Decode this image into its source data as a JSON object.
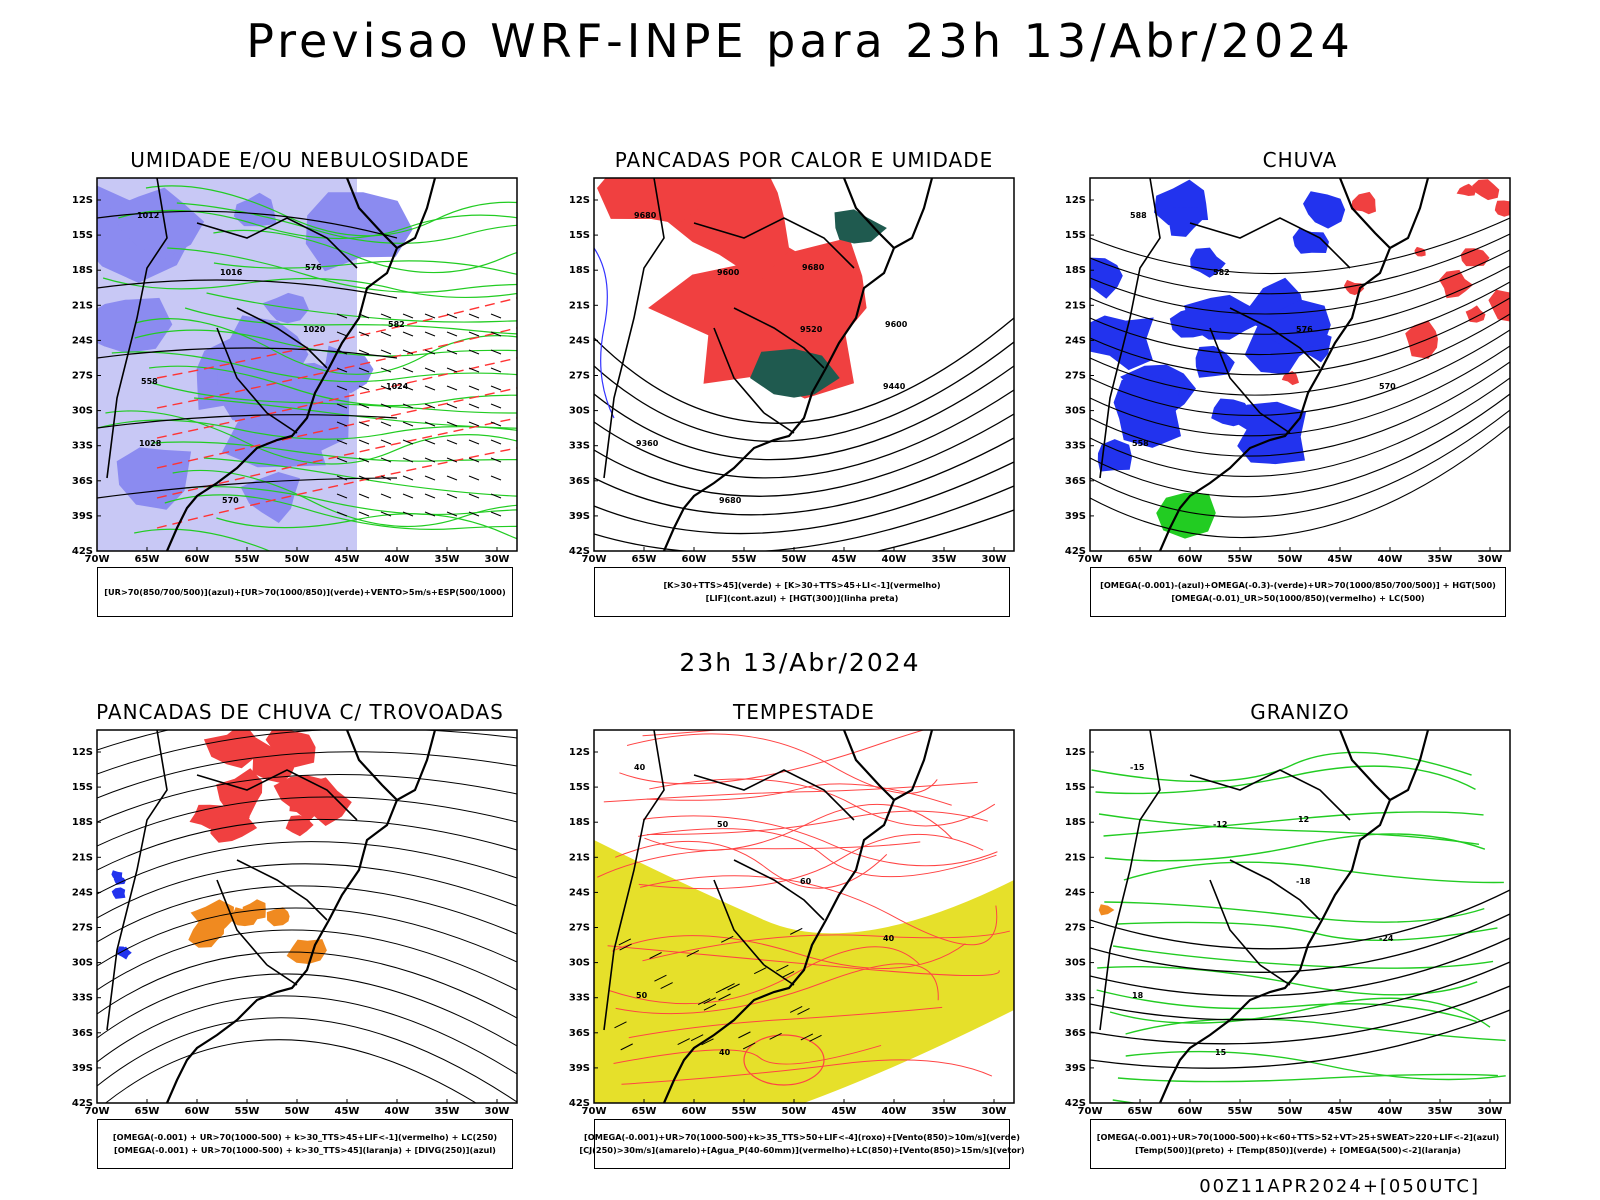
{
  "title": "Previsao WRF-INPE  para 23h 13/Abr/2024",
  "mid_title": "23h 13/Abr/2024",
  "footer": "00Z11APR2024+[050UTC]",
  "axes": {
    "lat_labels": [
      "12S",
      "15S",
      "18S",
      "21S",
      "24S",
      "27S",
      "30S",
      "33S",
      "36S",
      "39S",
      "42S"
    ],
    "lon_labels": [
      "70W",
      "65W",
      "60W",
      "55W",
      "50W",
      "45W",
      "40W",
      "35W",
      "30W"
    ]
  },
  "chart_data": [
    {
      "type": "heatmap",
      "title": "UMIDADE E/OU NEBULOSIDADE",
      "legend": [
        "[UR>70(850/700/500)](azul)+[UR>70(1000/850)](verde)+VENTO>5m/s+ESP(500/1000)"
      ],
      "contour_labels": [
        "1012",
        "1016",
        "1020",
        "1024",
        "1028",
        "570",
        "576",
        "582",
        "558"
      ],
      "colors": {
        "fill_humidity_upper": "#8b8bf0",
        "fill_humidity_light": "#c8c8f5",
        "contour_green": "#22cc22",
        "contour_red": "#ff3333"
      }
    },
    {
      "type": "heatmap",
      "title": "PANCADAS POR CALOR E UMIDADE",
      "legend": [
        "[K>30+TTS>45](verde) + [K>30+TTS>45+LI<-1](vermelho)",
        "[LIF](cont.azul) + [HGT(300)](linha preta)"
      ],
      "contour_labels": [
        "9680",
        "9600",
        "9520",
        "9440",
        "9360",
        "9680",
        "9680",
        "9600"
      ],
      "colors": {
        "fill_red": "#f04040",
        "fill_green": "#1f5a4f",
        "contour_blue": "#3333ff"
      }
    },
    {
      "type": "heatmap",
      "title": "CHUVA",
      "legend": [
        "[OMEGA(-0.001)-(azul)+OMEGA(-0.3)-(verde)+UR>70(1000/850/700/500)] + HGT(500)",
        "[OMEGA(-0.01)_UR>50(1000/850)(vermelho) + LC(500)"
      ],
      "contour_labels": [
        "588",
        "582",
        "576",
        "570",
        "558"
      ],
      "colors": {
        "fill_blue": "#2233ee",
        "fill_red": "#f04040",
        "fill_green": "#22cc22"
      }
    },
    {
      "type": "heatmap",
      "title": "PANCADAS DE CHUVA C/ TROVOADAS",
      "legend": [
        "[OMEGA(-0.001) + UR>70(1000-500) + k>30_TTS>45+LIF<-1](vermelho) + LC(250)",
        "[OMEGA(-0.001) + UR>70(1000-500) + k>30_TTS>45](laranja) + [DIVG(250)](azul)"
      ],
      "contour_labels": [],
      "colors": {
        "fill_red": "#f04040",
        "fill_orange": "#f08a20",
        "fill_blue": "#2233ee"
      }
    },
    {
      "type": "heatmap",
      "title": "TEMPESTADE",
      "legend": [
        "[OMEGA(-0.001)+UR>70(1000-500)+k>35_TTS>50+LIF<-4](roxo)+[Vento(850)>10m/s](verde)",
        "[CJ(250)>30m/s](amarelo)+[Agua_P(40-60mm)](vermelho)+LC(850)+[Vento(850)>15m/s](vetor)"
      ],
      "contour_labels": [
        "40",
        "50",
        "60",
        "40",
        "50",
        "40"
      ],
      "colors": {
        "fill_yellow": "#e6e02a",
        "contour_red": "#ff4444"
      }
    },
    {
      "type": "heatmap",
      "title": "GRANIZO",
      "legend": [
        "[OMEGA(-0.001)+UR>70(1000-500)+k<60+TTS>52+VT>25+SWEAT>220+LIF<-2](azul)",
        "[Temp(500)](preto) + [Temp(850)](verde) + [OMEGA(500)<-2](laranja)"
      ],
      "contour_labels": [
        "-15",
        "-12",
        "-18",
        "-24",
        "18",
        "15",
        "12"
      ],
      "colors": {
        "contour_green": "#22cc22",
        "contour_black": "#000000",
        "fill_orange": "#f08a20"
      }
    }
  ]
}
